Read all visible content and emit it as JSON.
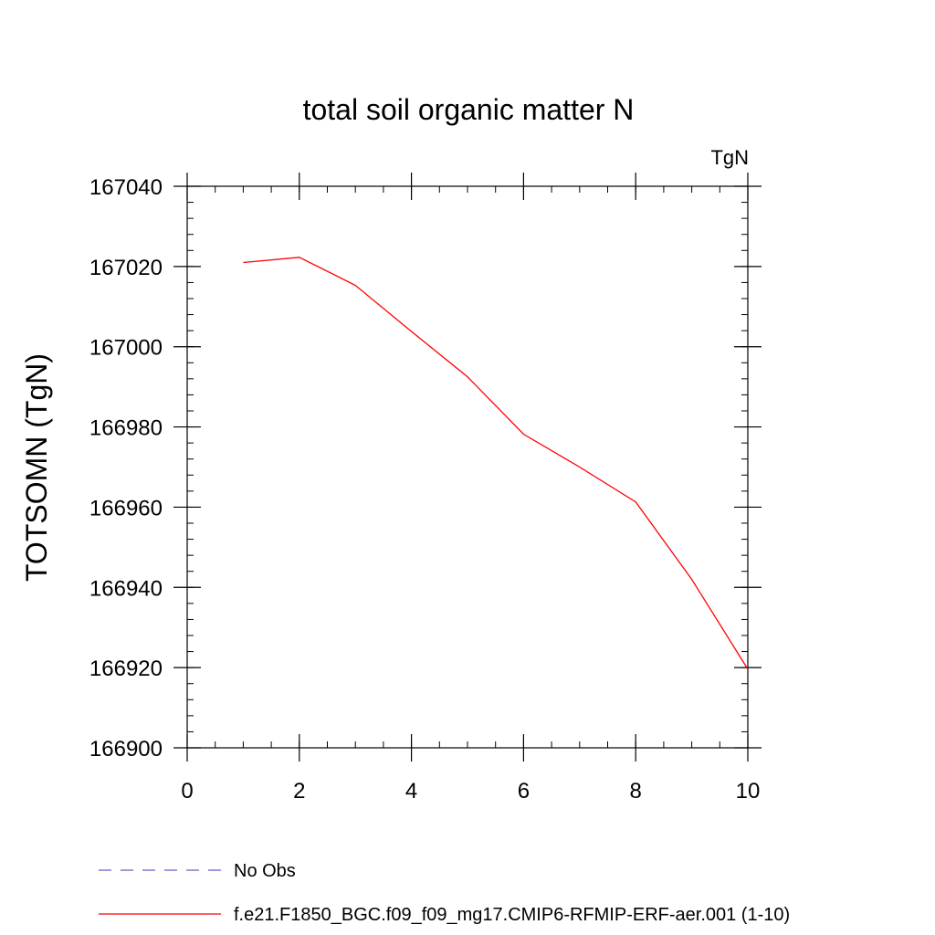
{
  "chart_data": {
    "type": "line",
    "title": "total soil organic matter N",
    "units_label": "TgN",
    "ylabel": "TOTSOMN  (TgN)",
    "xlabel": "",
    "xlim": [
      0,
      10
    ],
    "ylim": [
      166900,
      167040
    ],
    "x_ticks": [
      0,
      2,
      4,
      6,
      8,
      10
    ],
    "x_tick_labels": [
      "0",
      "2",
      "4",
      "6",
      "8",
      "10"
    ],
    "y_ticks": [
      166900,
      166920,
      166940,
      166960,
      166980,
      167000,
      167020,
      167040
    ],
    "y_tick_labels": [
      "166900",
      "166920",
      "166940",
      "166960",
      "166980",
      "167000",
      "167020",
      "167040"
    ],
    "x_minor_step": 0.5,
    "y_minor_step": 4,
    "grid": false,
    "legend_position": "bottom",
    "series": [
      {
        "name": "f.e21.F1850_BGC.f09_f09_mg17.CMIP6-RFMIP-ERF-aer.001 (1-10)",
        "color": "#ff0000",
        "dash": "solid",
        "x": [
          1,
          2,
          3,
          4,
          5,
          6,
          7,
          8,
          9,
          10
        ],
        "values": [
          167021,
          167022.3,
          167015.3,
          167003.8,
          166992.5,
          166978.2,
          166970,
          166961.3,
          166942,
          166919.6
        ]
      }
    ],
    "legend": [
      {
        "label": "No Obs",
        "color": "#6a5acd",
        "dash": "dashed"
      },
      {
        "label": "f.e21.F1850_BGC.f09_f09_mg17.CMIP6-RFMIP-ERF-aer.001 (1-10)",
        "color": "#ff0000",
        "dash": "solid"
      }
    ]
  }
}
